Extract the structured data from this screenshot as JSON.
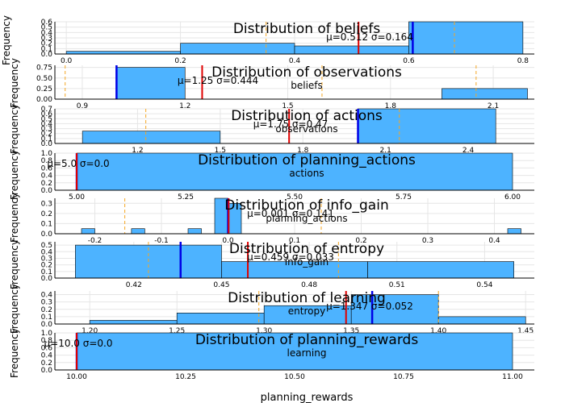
{
  "figure": {
    "xlabel": "planning_rewards"
  },
  "colors": {
    "bar": "#4db3ff",
    "bar_edge": "#000000",
    "mean": "#e00000",
    "median": "#0000e6",
    "quantile": "#f5a623",
    "axis": "#000000",
    "grid": "#e6e6e6"
  },
  "chart_data": [
    {
      "type": "bar",
      "title": "Distribution of beliefs",
      "xlabel": "",
      "ylabel": "Frequency",
      "xlim": [
        -0.02,
        0.82
      ],
      "ylim": [
        0,
        0.6
      ],
      "xticks": [
        "0.0",
        "0.2",
        "0.4",
        "0.6",
        "0.8"
      ],
      "xtick_values": [
        0.0,
        0.2,
        0.4,
        0.6,
        0.8
      ],
      "yticks": [
        "0.0",
        "0.1",
        "0.2",
        "0.3",
        "0.4",
        "0.5",
        "0.6"
      ],
      "ytick_values": [
        0,
        0.1,
        0.2,
        0.3,
        0.4,
        0.5,
        0.6
      ],
      "bins": [
        {
          "from": 0.0,
          "to": 0.2,
          "value": 0.05
        },
        {
          "from": 0.2,
          "to": 0.4,
          "value": 0.2
        },
        {
          "from": 0.4,
          "to": 0.6,
          "value": 0.15
        },
        {
          "from": 0.6,
          "to": 0.8,
          "value": 0.6
        }
      ],
      "mean": 0.512,
      "median": 0.607,
      "quantiles": [
        0.35,
        0.68
      ],
      "stats_text": "μ=0.512 σ=0.164",
      "stats_pos": "right"
    },
    {
      "type": "bar",
      "title": "Distribution of observations",
      "xlabel": "beliefs",
      "ylabel": "Frequency",
      "xlim": [
        0.82,
        2.22
      ],
      "ylim": [
        0,
        0.8
      ],
      "xticks": [
        "0.9",
        "1.2",
        "1.5",
        "1.8",
        "2.1"
      ],
      "xtick_values": [
        0.9,
        1.2,
        1.5,
        1.8,
        2.1
      ],
      "yticks": [
        "0.00",
        "0.25",
        "0.50",
        "0.75"
      ],
      "ytick_values": [
        0,
        0.25,
        0.5,
        0.75
      ],
      "bins": [
        {
          "from": 1.0,
          "to": 1.2,
          "value": 0.75
        },
        {
          "from": 1.95,
          "to": 2.2,
          "value": 0.25
        }
      ],
      "mean": 1.25,
      "median": 1.0,
      "quantiles": [
        0.85,
        1.6,
        2.05
      ],
      "stats_text": "μ=1.25 σ=0.444",
      "stats_pos": "left"
    },
    {
      "type": "bar",
      "title": "Distribution of actions",
      "xlabel": "observations",
      "ylabel": "Frequency",
      "xlim": [
        0.9,
        2.64
      ],
      "ylim": [
        0,
        0.7
      ],
      "xticks": [
        "1.2",
        "1.5",
        "1.8",
        "2.1",
        "2.4"
      ],
      "xtick_values": [
        1.2,
        1.5,
        1.8,
        2.1,
        2.4
      ],
      "yticks": [
        "0.0",
        "0.1",
        "0.2",
        "0.3",
        "0.4",
        "0.5",
        "0.6",
        "0.7"
      ],
      "ytick_values": [
        0,
        0.1,
        0.2,
        0.3,
        0.4,
        0.5,
        0.6,
        0.7
      ],
      "bins": [
        {
          "from": 1.0,
          "to": 1.5,
          "value": 0.25
        },
        {
          "from": 2.0,
          "to": 2.5,
          "value": 0.7
        }
      ],
      "mean": 1.75,
      "median": 2.0,
      "quantiles": [
        1.23,
        2.15
      ],
      "stats_text": "μ=1.75 σ=0.47",
      "stats_pos": "center"
    },
    {
      "type": "bar",
      "title": "Distribution of planning_actions",
      "xlabel": "actions",
      "ylabel": "Frequency",
      "xlim": [
        4.95,
        6.05
      ],
      "ylim": [
        0,
        1.0
      ],
      "xticks": [
        "5.00",
        "5.25",
        "5.50",
        "5.75",
        "6.00"
      ],
      "xtick_values": [
        5.0,
        5.25,
        5.5,
        5.75,
        6.0
      ],
      "yticks": [
        "0.0",
        "0.2",
        "0.4",
        "0.6",
        "0.8",
        "1.0"
      ],
      "ytick_values": [
        0,
        0.2,
        0.4,
        0.6,
        0.8,
        1.0
      ],
      "bins": [
        {
          "from": 5.0,
          "to": 6.0,
          "value": 1.0
        }
      ],
      "mean": 5.0,
      "median": 5.0,
      "quantiles": [],
      "stats_text": "μ=5.0 σ=0.0",
      "stats_pos": "far-left"
    },
    {
      "type": "bar",
      "title": "Distribution of info_gain",
      "xlabel": "planning_actions",
      "ylabel": "Frequency",
      "xlim": [
        -0.26,
        0.46
      ],
      "ylim": [
        0,
        0.35
      ],
      "xticks": [
        "-0.2",
        "-0.1",
        "0.0",
        "0.1",
        "0.2",
        "0.3",
        "0.4"
      ],
      "xtick_values": [
        -0.2,
        -0.1,
        0.0,
        0.1,
        0.2,
        0.3,
        0.4
      ],
      "yticks": [
        "0.0",
        "0.1",
        "0.2",
        "0.3"
      ],
      "ytick_values": [
        0,
        0.1,
        0.2,
        0.3
      ],
      "bins": [
        {
          "from": -0.22,
          "to": -0.2,
          "value": 0.05
        },
        {
          "from": -0.145,
          "to": -0.125,
          "value": 0.05
        },
        {
          "from": -0.06,
          "to": -0.04,
          "value": 0.05
        },
        {
          "from": -0.02,
          "to": 0.0,
          "value": 0.35
        },
        {
          "from": 0.0,
          "to": 0.02,
          "value": 0.3
        },
        {
          "from": 0.42,
          "to": 0.44,
          "value": 0.05
        }
      ],
      "mean": 0.001,
      "median": 0.0,
      "quantiles": [
        -0.155,
        0.14
      ],
      "stats_text": "μ=0.001 σ=0.141",
      "stats_pos": "center"
    },
    {
      "type": "bar",
      "title": "Distribution of entropy",
      "xlabel": "info_gain",
      "ylabel": "Frequency",
      "xlim": [
        0.393,
        0.557
      ],
      "ylim": [
        0,
        0.55
      ],
      "xticks": [
        "0.42",
        "0.45",
        "0.48",
        "0.51",
        "0.54"
      ],
      "xtick_values": [
        0.42,
        0.45,
        0.48,
        0.51,
        0.54
      ],
      "yticks": [
        "0.0",
        "0.1",
        "0.2",
        "0.3",
        "0.4",
        "0.5"
      ],
      "ytick_values": [
        0,
        0.1,
        0.2,
        0.3,
        0.4,
        0.5
      ],
      "bins": [
        {
          "from": 0.4,
          "to": 0.45,
          "value": 0.5
        },
        {
          "from": 0.45,
          "to": 0.5,
          "value": 0.25
        },
        {
          "from": 0.5,
          "to": 0.55,
          "value": 0.25
        }
      ],
      "mean": 0.459,
      "median": 0.436,
      "quantiles": [
        0.425,
        0.49
      ],
      "stats_text": "μ=0.459 σ=0.033",
      "stats_pos": "center"
    },
    {
      "type": "bar",
      "title": "Distribution of learning",
      "xlabel": "entropy",
      "ylabel": "Frequency",
      "xlim": [
        1.18,
        1.455
      ],
      "ylim": [
        0,
        0.45
      ],
      "xticks": [
        "1.20",
        "1.25",
        "1.30",
        "1.35",
        "1.40",
        "1.45"
      ],
      "xtick_values": [
        1.2,
        1.25,
        1.3,
        1.35,
        1.4,
        1.45
      ],
      "yticks": [
        "0.0",
        "0.1",
        "0.2",
        "0.3",
        "0.4"
      ],
      "ytick_values": [
        0,
        0.1,
        0.2,
        0.3,
        0.4
      ],
      "bins": [
        {
          "from": 1.2,
          "to": 1.25,
          "value": 0.05
        },
        {
          "from": 1.25,
          "to": 1.3,
          "value": 0.15
        },
        {
          "from": 1.3,
          "to": 1.35,
          "value": 0.25
        },
        {
          "from": 1.35,
          "to": 1.4,
          "value": 0.4
        },
        {
          "from": 1.4,
          "to": 1.45,
          "value": 0.1
        }
      ],
      "mean": 1.347,
      "median": 1.362,
      "quantiles": [
        1.297,
        1.4
      ],
      "stats_text": "μ=1.347 σ=0.052",
      "stats_pos": "right"
    },
    {
      "type": "bar",
      "title": "Distribution of planning_rewards",
      "xlabel": "learning",
      "ylabel": "Frequency",
      "xlim": [
        9.95,
        11.05
      ],
      "ylim": [
        0,
        1.0
      ],
      "xticks": [
        "10.00",
        "10.25",
        "10.50",
        "10.75",
        "11.00"
      ],
      "xtick_values": [
        10.0,
        10.25,
        10.5,
        10.75,
        11.0
      ],
      "yticks": [
        "0.0",
        "0.2",
        "0.4",
        "0.6",
        "0.8",
        "1.0"
      ],
      "ytick_values": [
        0,
        0.2,
        0.4,
        0.6,
        0.8,
        1.0
      ],
      "bins": [
        {
          "from": 10.0,
          "to": 11.0,
          "value": 1.0
        }
      ],
      "mean": 10.0,
      "median": 10.0,
      "quantiles": [],
      "stats_text": "μ=10.0 σ=0.0",
      "stats_pos": "far-left"
    }
  ]
}
